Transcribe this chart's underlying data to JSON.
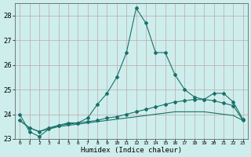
{
  "x": [
    0,
    1,
    2,
    3,
    4,
    5,
    6,
    7,
    8,
    9,
    10,
    11,
    12,
    13,
    14,
    15,
    16,
    17,
    18,
    19,
    20,
    21,
    22,
    23
  ],
  "line1": [
    24.0,
    23.3,
    23.1,
    23.4,
    23.55,
    23.65,
    23.65,
    23.85,
    24.4,
    24.85,
    25.5,
    26.5,
    28.3,
    27.7,
    26.5,
    26.5,
    25.6,
    25.0,
    24.7,
    24.6,
    24.85,
    24.85,
    24.5,
    23.8
  ],
  "line2": [
    23.75,
    23.45,
    23.3,
    23.45,
    23.55,
    23.6,
    23.65,
    23.7,
    23.75,
    23.85,
    23.9,
    24.0,
    24.1,
    24.2,
    24.3,
    24.4,
    24.5,
    24.55,
    24.6,
    24.6,
    24.55,
    24.45,
    24.35,
    23.75
  ],
  "line3": [
    23.75,
    23.45,
    23.3,
    23.4,
    23.5,
    23.55,
    23.6,
    23.65,
    23.7,
    23.75,
    23.8,
    23.85,
    23.9,
    23.95,
    24.0,
    24.05,
    24.1,
    24.1,
    24.1,
    24.1,
    24.05,
    24.0,
    23.95,
    23.75
  ],
  "ylim": [
    23.0,
    28.5
  ],
  "yticks": [
    23,
    24,
    25,
    26,
    27,
    28
  ],
  "xlabel": "Humidex (Indice chaleur)",
  "line_color": "#1a7068",
  "bg_color": "#cdeeed",
  "grid_color": "#c0a8a8",
  "marker": "D",
  "marker_size": 2.0
}
